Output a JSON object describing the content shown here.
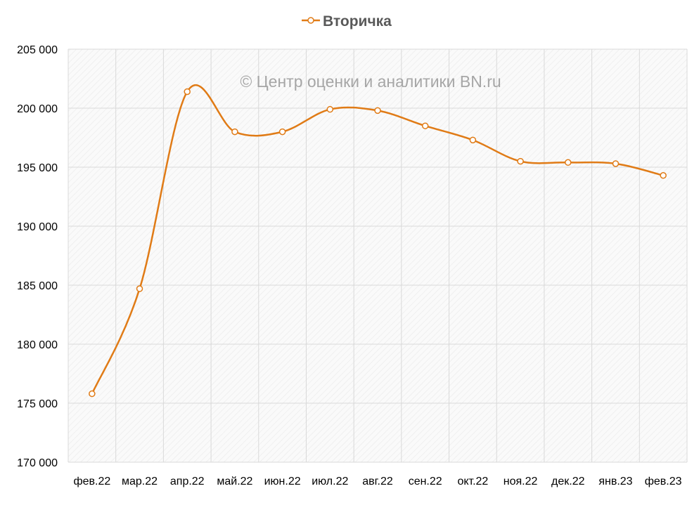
{
  "chart_data": {
    "type": "line",
    "title": "",
    "xlabel": "",
    "ylabel": "",
    "categories": [
      "фев.22",
      "мар.22",
      "апр.22",
      "май.22",
      "июн.22",
      "июл.22",
      "авг.22",
      "сен.22",
      "окт.22",
      "ноя.22",
      "дек.22",
      "янв.23",
      "фев.23"
    ],
    "series": [
      {
        "name": "Вторичка",
        "color": "#e07b16",
        "values": [
          175800,
          184700,
          201400,
          198000,
          198000,
          199900,
          199800,
          198500,
          197300,
          195500,
          195400,
          195300,
          194300
        ]
      }
    ],
    "ylim": [
      170000,
      205000
    ],
    "yticks": [
      170000,
      175000,
      180000,
      185000,
      190000,
      195000,
      200000,
      205000
    ],
    "ytick_labels": [
      "170 000",
      "175 000",
      "180 000",
      "185 000",
      "190 000",
      "195 000",
      "200 000",
      "205 000"
    ],
    "smooth": true,
    "grid": true,
    "legend": "top-center",
    "watermark": "© Центр оценки и аналитики BN.ru"
  }
}
